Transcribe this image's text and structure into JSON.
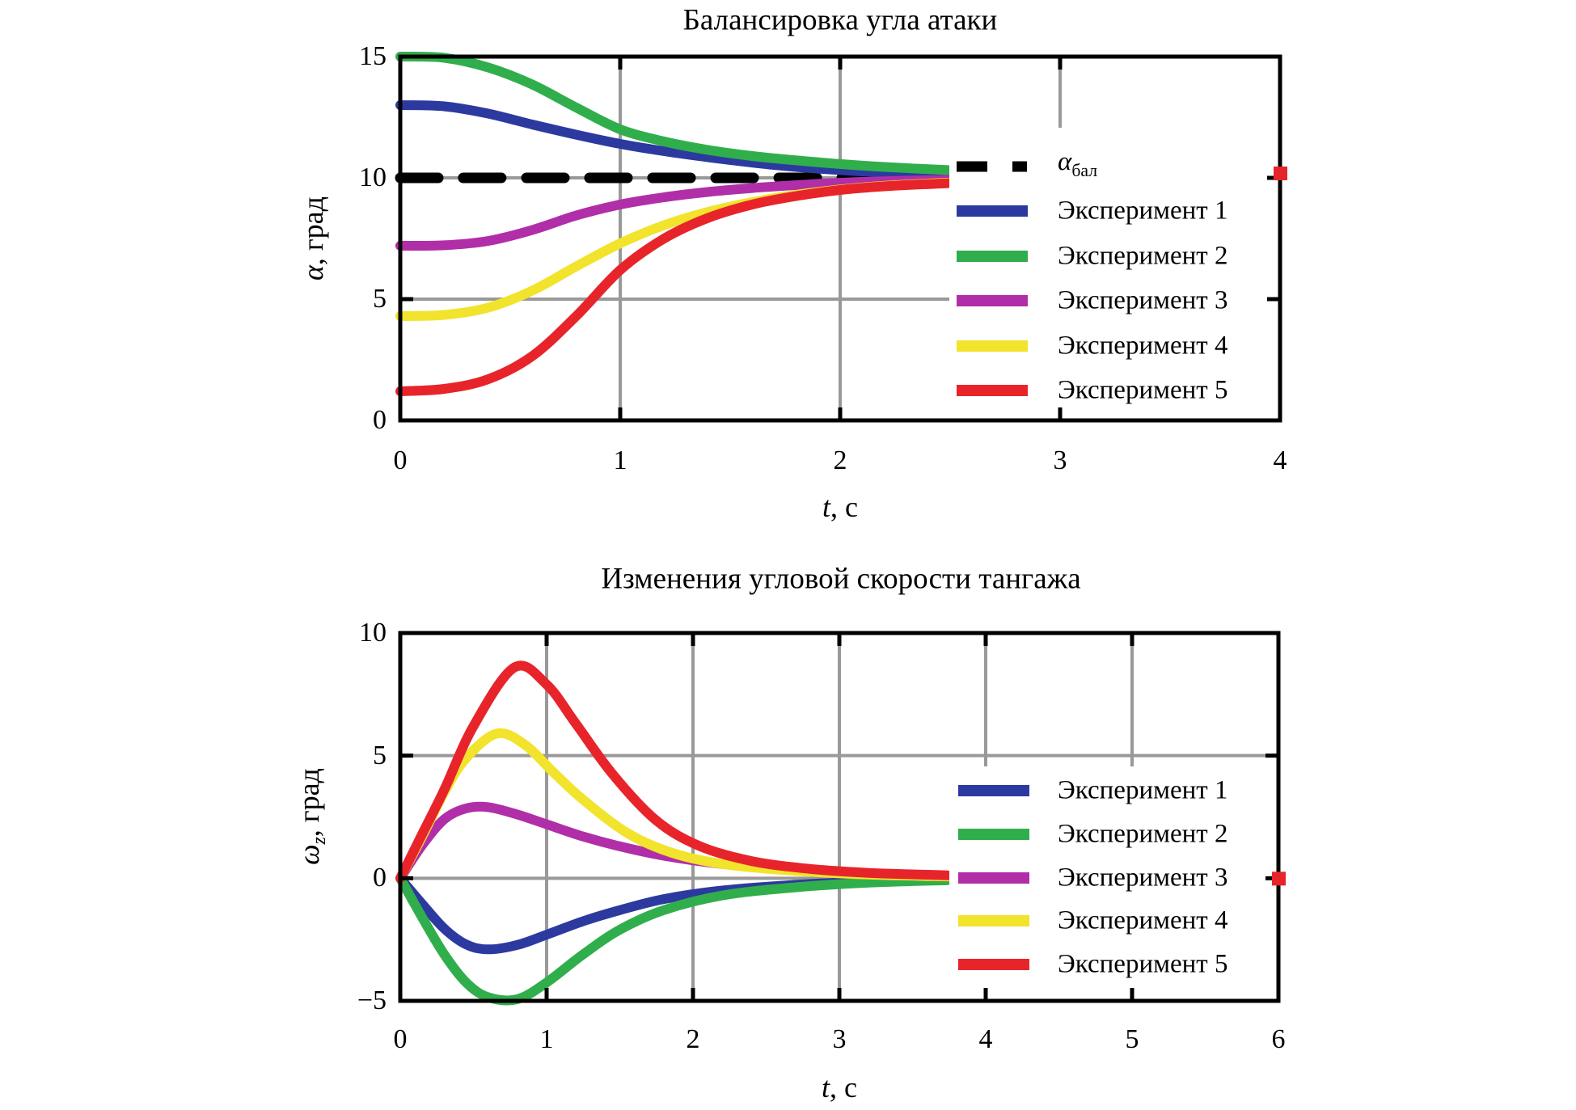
{
  "figure_title": "",
  "colors": {
    "grid": "#999999",
    "axis": "#000000",
    "background": "#ffffff",
    "exp1": "#2C3AA0",
    "exp2": "#31AE4C",
    "exp3": "#B02FA9",
    "exp4": "#F2E32C",
    "exp5": "#E8242B",
    "balance": "#000000"
  },
  "chart_data": {
    "note": "same content as charts[]; two stacked line charts of flight experiments"
  },
  "charts": [
    {
      "id": "alpha-balance",
      "type": "line",
      "title": "Балансировка угла атаки",
      "xlabel": {
        "base": "t",
        "rest": ", с"
      },
      "ylabel": {
        "base": "α",
        "sub": "",
        "rest": ", град"
      },
      "xlim": [
        0,
        4
      ],
      "ylim": [
        0,
        15
      ],
      "xticks": [
        {
          "value": 0,
          "label": "0"
        },
        {
          "value": 1,
          "label": "1"
        },
        {
          "value": 2,
          "label": "2"
        },
        {
          "value": 3,
          "label": "3"
        },
        {
          "value": 4,
          "label": "4"
        }
      ],
      "yticks": [
        {
          "value": 15,
          "label": "15"
        },
        {
          "value": 10,
          "label": "10"
        },
        {
          "value": 5,
          "label": "5"
        },
        {
          "value": 0,
          "label": "0"
        }
      ],
      "xgrid": [
        1,
        2,
        3
      ],
      "ygrid": [
        5,
        10
      ],
      "grid": true,
      "legend_position": "right-inside",
      "legend": [
        {
          "base": "α",
          "sub": "бал",
          "swatch": "dashed",
          "color": "#000000"
        },
        {
          "label": "Эксперимент 1",
          "color": "#2C3AA0"
        },
        {
          "label": "Эксперимент 2",
          "color": "#31AE4C"
        },
        {
          "label": "Эксперимент 3",
          "color": "#B02FA9"
        },
        {
          "label": "Эксперимент 4",
          "color": "#F2E32C"
        },
        {
          "label": "Эксперимент 5",
          "color": "#E8242B"
        }
      ],
      "series": [
        {
          "name": "альфа балансировочный",
          "color": "#000000",
          "dashed": true,
          "width": 13,
          "x": [
            0,
            2.42
          ],
          "y": [
            10,
            10
          ]
        },
        {
          "name": "Эксперимент 1",
          "color": "#2C3AA0",
          "width": 12,
          "x": [
            0,
            0.2,
            0.4,
            0.6,
            0.8,
            1.0,
            1.2,
            1.4,
            1.6,
            1.8,
            2.0,
            2.2,
            2.49
          ],
          "y": [
            13.0,
            12.95,
            12.65,
            12.2,
            11.78,
            11.4,
            11.1,
            10.85,
            10.63,
            10.45,
            10.32,
            10.22,
            10.12
          ]
        },
        {
          "name": "Эксперимент 2",
          "color": "#31AE4C",
          "width": 12,
          "x": [
            0,
            0.2,
            0.4,
            0.6,
            0.8,
            1.0,
            1.2,
            1.4,
            1.6,
            1.8,
            2.0,
            2.2,
            2.49
          ],
          "y": [
            15.0,
            14.95,
            14.55,
            13.85,
            12.9,
            12.0,
            11.5,
            11.15,
            10.9,
            10.72,
            10.57,
            10.45,
            10.32
          ]
        },
        {
          "name": "Эксперимент 3",
          "color": "#B02FA9",
          "width": 12,
          "x": [
            0,
            0.2,
            0.4,
            0.6,
            0.8,
            1.0,
            1.2,
            1.4,
            1.6,
            1.8,
            2.0,
            2.2,
            2.49
          ],
          "y": [
            7.2,
            7.22,
            7.4,
            7.85,
            8.45,
            8.9,
            9.2,
            9.42,
            9.58,
            9.7,
            9.8,
            9.86,
            9.92
          ]
        },
        {
          "name": "Эксперимент 4",
          "color": "#F2E32C",
          "width": 12,
          "x": [
            0,
            0.2,
            0.4,
            0.6,
            0.8,
            1.0,
            1.2,
            1.4,
            1.6,
            1.8,
            2.0,
            2.2,
            2.49
          ],
          "y": [
            4.3,
            4.35,
            4.65,
            5.35,
            6.35,
            7.3,
            8.05,
            8.6,
            9.0,
            9.3,
            9.52,
            9.67,
            9.8
          ]
        },
        {
          "name": "Эксперимент 5",
          "color": "#E8242B",
          "width": 12,
          "x": [
            0,
            0.2,
            0.4,
            0.6,
            0.8,
            1.0,
            1.2,
            1.4,
            1.6,
            1.8,
            2.0,
            2.2,
            2.49
          ],
          "y": [
            1.2,
            1.3,
            1.7,
            2.65,
            4.3,
            6.2,
            7.5,
            8.35,
            8.9,
            9.25,
            9.5,
            9.65,
            9.78
          ]
        }
      ],
      "edge_marker": {
        "color": "#E8242B",
        "value": 10.2
      }
    },
    {
      "id": "omega-z",
      "type": "line",
      "title": "Изменения угловой скорости тангажа",
      "xlabel": {
        "base": "t",
        "rest": ", с"
      },
      "ylabel": {
        "base": "ω",
        "sub": "z",
        "rest": ", град"
      },
      "xlim": [
        0,
        6
      ],
      "ylim": [
        -5,
        10
      ],
      "xticks": [
        {
          "value": 0,
          "label": "0"
        },
        {
          "value": 1,
          "label": "1"
        },
        {
          "value": 2,
          "label": "2"
        },
        {
          "value": 3,
          "label": "3"
        },
        {
          "value": 4,
          "label": "4"
        },
        {
          "value": 5,
          "label": "5"
        },
        {
          "value": 6,
          "label": "6"
        }
      ],
      "yticks": [
        {
          "value": 10,
          "label": "10"
        },
        {
          "value": 5,
          "label": "5"
        },
        {
          "value": 0,
          "label": "0"
        },
        {
          "value": -5,
          "label": "−5"
        }
      ],
      "xgrid": [
        1,
        2,
        3,
        4,
        5
      ],
      "ygrid": [
        0,
        5
      ],
      "grid": true,
      "legend_position": "right-inside",
      "legend": [
        {
          "label": "Эксперимент 1",
          "color": "#2C3AA0"
        },
        {
          "label": "Эксперимент 2",
          "color": "#31AE4C"
        },
        {
          "label": "Эксперимент 3",
          "color": "#B02FA9"
        },
        {
          "label": "Эксперимент 4",
          "color": "#F2E32C"
        },
        {
          "label": "Эксперимент 5",
          "color": "#E8242B"
        }
      ],
      "series": [
        {
          "name": "Эксперимент 1",
          "color": "#2C3AA0",
          "width": 12,
          "x": [
            0,
            0.15,
            0.3,
            0.45,
            0.6,
            0.8,
            1.0,
            1.25,
            1.5,
            1.8,
            2.2,
            2.7,
            3.2,
            3.74
          ],
          "y": [
            0,
            -1.05,
            -2.05,
            -2.7,
            -2.9,
            -2.72,
            -2.3,
            -1.75,
            -1.3,
            -0.85,
            -0.5,
            -0.27,
            -0.13,
            -0.06
          ]
        },
        {
          "name": "Эксперимент 2",
          "color": "#31AE4C",
          "width": 12,
          "x": [
            0,
            0.15,
            0.3,
            0.45,
            0.6,
            0.8,
            1.0,
            1.25,
            1.5,
            1.8,
            2.2,
            2.7,
            3.2,
            3.74
          ],
          "y": [
            0,
            -1.6,
            -3.1,
            -4.25,
            -4.85,
            -4.93,
            -4.25,
            -3.1,
            -2.1,
            -1.3,
            -0.7,
            -0.37,
            -0.18,
            -0.08
          ]
        },
        {
          "name": "Эксперимент 3",
          "color": "#B02FA9",
          "width": 12,
          "x": [
            0,
            0.15,
            0.3,
            0.45,
            0.6,
            0.8,
            1.0,
            1.25,
            1.5,
            1.8,
            2.2,
            2.7,
            3.2,
            3.74
          ],
          "y": [
            0,
            1.35,
            2.4,
            2.85,
            2.9,
            2.6,
            2.2,
            1.7,
            1.3,
            0.92,
            0.58,
            0.32,
            0.16,
            0.07
          ]
        },
        {
          "name": "Эксперимент 4",
          "color": "#F2E32C",
          "width": 12,
          "x": [
            0,
            0.15,
            0.3,
            0.45,
            0.66,
            0.85,
            1.05,
            1.25,
            1.55,
            1.85,
            2.2,
            2.7,
            3.2,
            3.74
          ],
          "y": [
            0,
            1.7,
            3.5,
            4.9,
            5.9,
            5.45,
            4.3,
            3.2,
            1.85,
            1.05,
            0.58,
            0.3,
            0.15,
            0.07
          ]
        },
        {
          "name": "Эксперимент 5",
          "color": "#E8242B",
          "width": 12,
          "x": [
            0,
            0.15,
            0.3,
            0.5,
            0.78,
            1.0,
            1.2,
            1.45,
            1.75,
            2.05,
            2.4,
            2.8,
            3.2,
            3.74
          ],
          "y": [
            0,
            1.8,
            3.6,
            6.2,
            8.6,
            7.9,
            6.3,
            4.25,
            2.35,
            1.3,
            0.7,
            0.38,
            0.22,
            0.12
          ]
        }
      ],
      "edge_marker": {
        "color": "#E8242B",
        "value": 0
      }
    }
  ]
}
